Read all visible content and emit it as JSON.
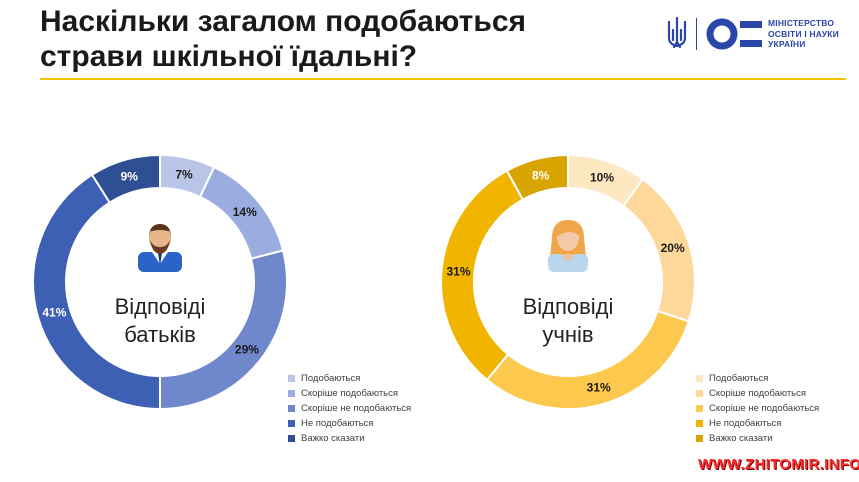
{
  "title_lines": [
    "Наскільки загалом подобаються",
    "страви шкільної їдальні?"
  ],
  "ministry": {
    "lines": [
      "МІНІСТЕРСТВО",
      "ОСВІТИ І НАУКИ",
      "УКРАЇНИ"
    ]
  },
  "watermark": "WWW.ZHITOMIR.INFO",
  "chart_data": [
    {
      "type": "pie",
      "center_label": [
        "Відповіді",
        "батьків"
      ],
      "icon": "man-avatar-icon",
      "categories": [
        "Подобаються",
        "Скоріше подобаються",
        "Скоріше не подобаються",
        "Не подобаються",
        "Важко сказати"
      ],
      "values": [
        7,
        14,
        29,
        41,
        9
      ],
      "value_labels": [
        "7%",
        "14%",
        "29%",
        "41%",
        "9%"
      ],
      "colors": [
        "#b8c5e6",
        "#9aace0",
        "#6f87cb",
        "#3d60b4",
        "#2f4f94"
      ],
      "legend": "bottom-right"
    },
    {
      "type": "pie",
      "center_label": [
        "Відповіді",
        "учнів"
      ],
      "icon": "girl-avatar-icon",
      "categories": [
        "Подобаються",
        "Скоріше подобаються",
        "Скоріше не подобаються",
        "Не подобаються",
        "Важко сказати"
      ],
      "values": [
        10,
        20,
        31,
        31,
        8
      ],
      "value_labels": [
        "10%",
        "20%",
        "31%",
        "31%",
        "8%"
      ],
      "colors": [
        "#fde8c2",
        "#fdd89a",
        "#fcc84e",
        "#f1b500",
        "#d9a300"
      ],
      "legend": "bottom-right"
    }
  ]
}
